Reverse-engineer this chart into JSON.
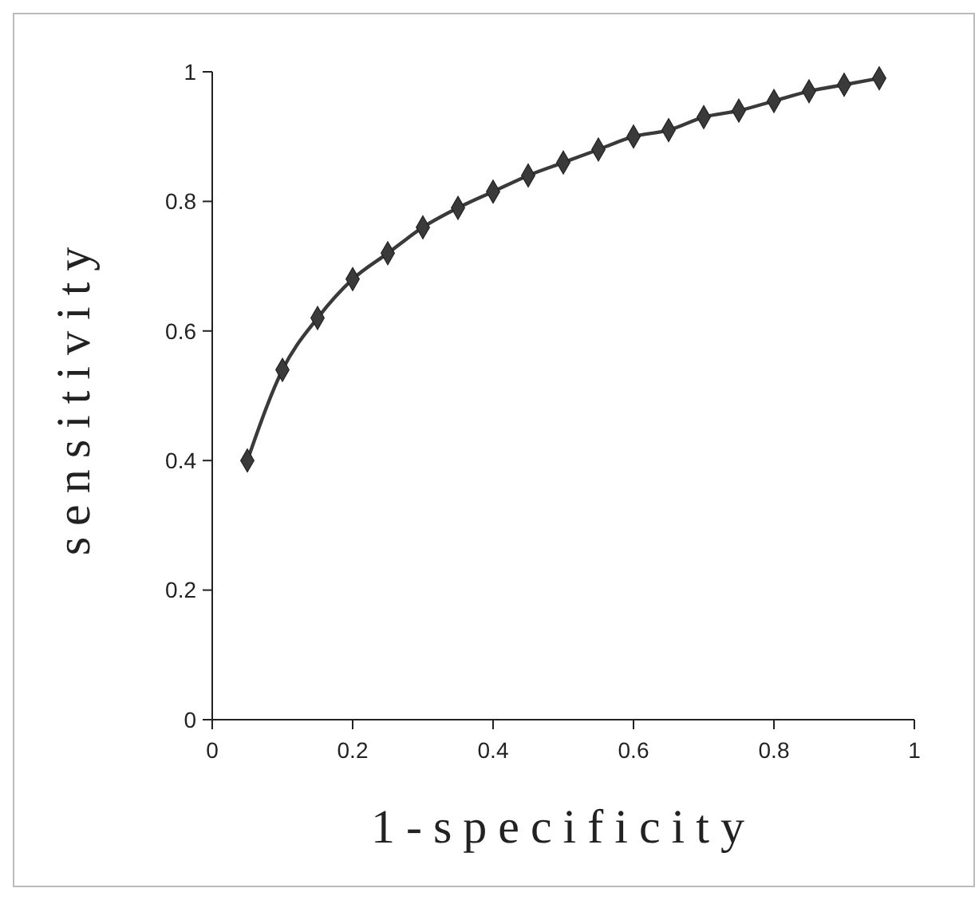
{
  "chart_data": {
    "type": "line",
    "xlabel": "1-specificity",
    "ylabel": "sensitivity",
    "x": [
      0.05,
      0.1,
      0.15,
      0.2,
      0.25,
      0.3,
      0.35,
      0.4,
      0.45,
      0.5,
      0.55,
      0.6,
      0.65,
      0.7,
      0.75,
      0.8,
      0.85,
      0.9,
      0.95
    ],
    "series": [
      {
        "color": "#3a3a3a",
        "values": [
          0.4,
          0.54,
          0.62,
          0.68,
          0.72,
          0.76,
          0.79,
          0.815,
          0.84,
          0.86,
          0.88,
          0.9,
          0.91,
          0.93,
          0.94,
          0.955,
          0.97,
          0.98,
          0.99
        ]
      }
    ],
    "xlim": [
      0,
      1
    ],
    "xticks": [
      0,
      0.2,
      0.4,
      0.6,
      0.8,
      1
    ],
    "ylim": [
      0,
      1
    ],
    "yticks": [
      0,
      0.2,
      0.4,
      0.6,
      0.8,
      1
    ],
    "marker": "diamond",
    "line_style": "solid",
    "grid": false
  }
}
